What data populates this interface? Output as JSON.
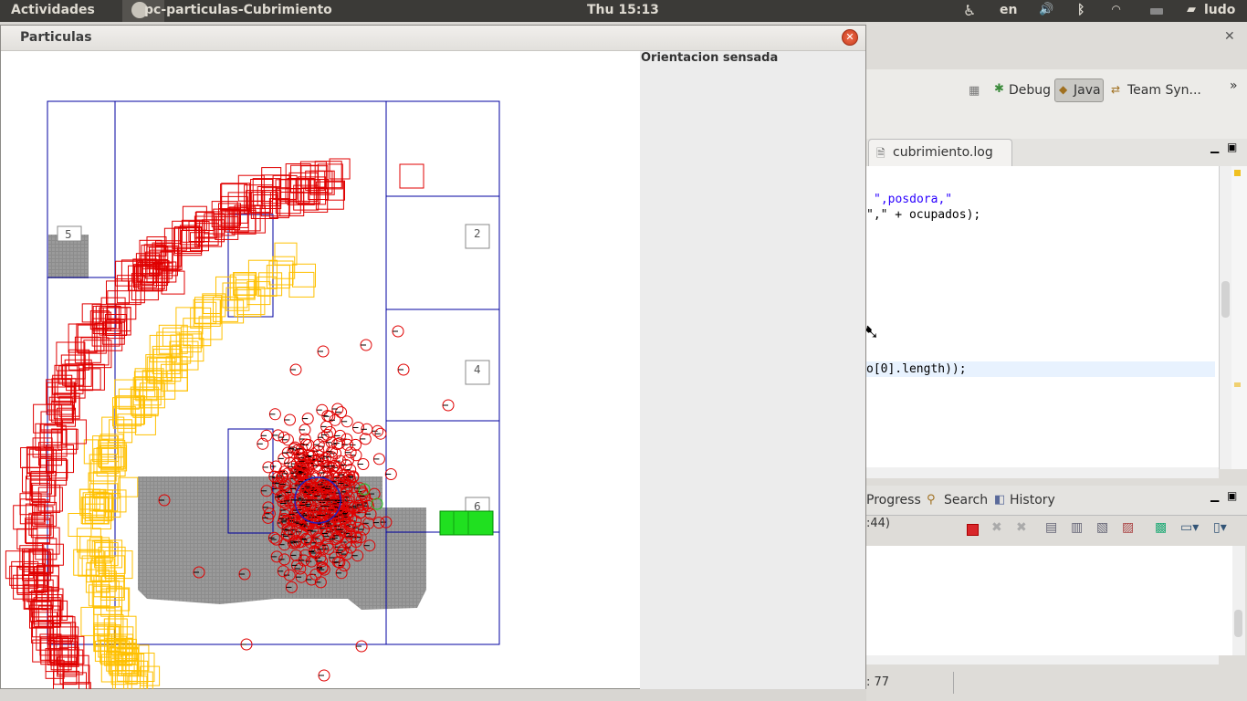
{
  "topbar": {
    "activities": "Actividades",
    "app_name": "pc-particulas-Cubrimiento",
    "clock": "Thu 15:13",
    "language": "en",
    "user": "ludo"
  },
  "window": {
    "title": "Particulas",
    "side_label": "Orientacion sensada",
    "zone_labels": [
      "5",
      "2",
      "4",
      "6"
    ]
  },
  "eclipse": {
    "perspectives": [
      "Debug",
      "Java",
      "Team Syn..."
    ],
    "editor_tab": "cubrimiento.log",
    "code_lines": [
      {
        "text": "\",posdora,\""
      },
      {
        "text": "\",\" + ocupados);"
      },
      {
        "text": "o[0].length));"
      }
    ],
    "bottom_tabs": [
      "Progress",
      "Search",
      "History"
    ],
    "console_text": ":44)",
    "status_text": ": 77"
  },
  "colors": {
    "particle_red": "#e00000",
    "particle_yellow": "#ffc000",
    "grid_blue": "#0000a0",
    "sensor_green": "#20e020",
    "obstacle_gray": "#8c8c8c"
  }
}
